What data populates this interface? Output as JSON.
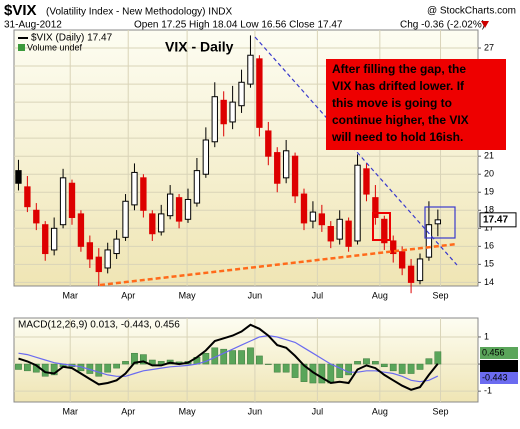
{
  "header": {
    "symbol": "$VIX",
    "name": "(Volatility Index - New Methodology) INDX",
    "date": "31-Aug-2012",
    "quote": "Open 17.25 High 18.04 Low 16.56 Close 17.47",
    "change": "Chg -0.36 (-2.02%)",
    "source": "@ StockCharts.com"
  },
  "chart_data": [
    {
      "type": "candlestick",
      "title": "VIX - Daily",
      "legend": [
        "$VIX (Daily) 17.47",
        "Volume undef"
      ],
      "annotation": [
        "After filling the gap, the",
        "VIX has drifted lower. If",
        "this move is going to",
        "continue higher, the VIX",
        "will need to hold 16ish."
      ],
      "open": [
        20.2,
        19.3,
        18.0,
        17.2,
        15.8,
        17.2,
        19.5,
        17.8,
        16.2,
        15.4,
        14.8,
        15.6,
        16.5,
        18.3,
        19.8,
        17.8,
        16.8,
        17.7,
        18.7,
        17.5,
        18.4,
        20.0,
        21.8,
        24.1,
        22.9,
        23.8,
        25.0,
        26.4,
        22.4,
        21.2,
        19.8,
        21.0,
        18.9,
        17.4,
        17.8,
        17.1,
        16.4,
        17.4,
        16.3,
        20.3,
        18.7,
        17.5,
        16.3,
        15.7,
        14.9,
        14.1,
        15.4,
        17.25
      ],
      "high": [
        20.8,
        19.9,
        18.4,
        17.4,
        17.6,
        20.3,
        19.7,
        18.0,
        16.6,
        15.9,
        16.2,
        16.9,
        18.9,
        20.6,
        20.0,
        18.0,
        18.3,
        19.4,
        18.9,
        19.2,
        20.9,
        22.6,
        25.1,
        24.6,
        24.9,
        25.8,
        27.7,
        26.6,
        22.9,
        21.5,
        21.9,
        21.2,
        19.2,
        18.5,
        18.3,
        17.4,
        18.0,
        17.6,
        21.1,
        20.6,
        19.4,
        17.7,
        16.6,
        16.0,
        15.3,
        15.6,
        18.5,
        18.04
      ],
      "low": [
        19.1,
        17.9,
        16.9,
        15.2,
        15.5,
        17.0,
        17.2,
        15.7,
        14.8,
        13.8,
        14.5,
        15.3,
        16.3,
        18.0,
        17.6,
        16.3,
        16.6,
        17.5,
        17.0,
        17.3,
        18.2,
        19.8,
        21.5,
        22.1,
        22.5,
        23.4,
        24.8,
        22.1,
        20.5,
        19.0,
        19.5,
        18.4,
        16.9,
        17.0,
        16.8,
        15.9,
        16.1,
        15.7,
        16.1,
        18.5,
        17.2,
        15.8,
        15.1,
        14.4,
        13.4,
        13.9,
        15.2,
        16.56
      ],
      "close": [
        19.5,
        18.2,
        17.3,
        15.6,
        17.0,
        19.8,
        17.6,
        16.0,
        15.3,
        14.6,
        15.8,
        16.4,
        18.5,
        20.1,
        18.0,
        16.7,
        17.8,
        18.9,
        17.4,
        18.6,
        20.2,
        21.9,
        24.3,
        22.8,
        24.0,
        25.1,
        26.6,
        22.6,
        21.0,
        19.5,
        21.3,
        18.8,
        17.3,
        17.9,
        17.2,
        16.3,
        17.5,
        16.0,
        20.5,
        18.9,
        17.6,
        16.2,
        15.6,
        14.8,
        14.0,
        15.3,
        17.2,
        17.47
      ],
      "xlim": [
        0,
        52
      ],
      "xticks": [
        {
          "value": 6.3,
          "label": "Mar"
        },
        {
          "value": 12.8,
          "label": "Apr"
        },
        {
          "value": 19.4,
          "label": "May"
        },
        {
          "value": 27.0,
          "label": "Jun"
        },
        {
          "value": 34.0,
          "label": "Jul"
        },
        {
          "value": 41.0,
          "label": "Aug"
        },
        {
          "value": 47.8,
          "label": "Sep"
        }
      ],
      "ylim": [
        13.8,
        28
      ],
      "yticks": [
        14,
        15,
        16,
        17,
        18,
        19,
        20,
        21,
        22,
        23,
        24,
        25,
        26,
        27
      ],
      "grid": true
    },
    {
      "type": "macd",
      "legend": "MACD(12,26,9) 0.013, -0.443, 0.456",
      "series": [
        {
          "color": "#5aa55a",
          "values": [
            -0.2,
            -0.25,
            -0.3,
            -0.45,
            -0.4,
            -0.1,
            -0.1,
            -0.25,
            -0.35,
            -0.45,
            -0.3,
            -0.15,
            0.1,
            0.4,
            0.35,
            0.15,
            0.1,
            0.15,
            0.08,
            0.1,
            0.25,
            0.4,
            0.6,
            0.55,
            0.5,
            0.5,
            0.6,
            0.3,
            0.0,
            -0.3,
            -0.3,
            -0.5,
            -0.65,
            -0.7,
            -0.7,
            -0.7,
            -0.5,
            -0.4,
            0.1,
            0.2,
            0.1,
            -0.1,
            -0.25,
            -0.35,
            -0.35,
            -0.2,
            0.2,
            0.456
          ]
        },
        {
          "color": "#000000",
          "values": [
            0.2,
            0.1,
            -0.05,
            -0.3,
            -0.35,
            -0.1,
            -0.15,
            -0.35,
            -0.55,
            -0.75,
            -0.7,
            -0.6,
            -0.35,
            0.05,
            0.1,
            -0.05,
            -0.05,
            0.05,
            0.0,
            0.05,
            0.25,
            0.5,
            0.85,
            0.95,
            1.05,
            1.2,
            1.45,
            1.3,
            1.05,
            0.7,
            0.6,
            0.3,
            -0.05,
            -0.3,
            -0.5,
            -0.7,
            -0.65,
            -0.7,
            -0.2,
            -0.05,
            -0.15,
            -0.4,
            -0.6,
            -0.8,
            -0.95,
            -0.85,
            -0.4,
            0.013
          ]
        },
        {
          "color": "#6b6bf0",
          "values": [
            0.4,
            0.35,
            0.25,
            0.15,
            0.05,
            0.0,
            -0.05,
            -0.1,
            -0.2,
            -0.3,
            -0.4,
            -0.45,
            -0.45,
            -0.35,
            -0.25,
            -0.2,
            -0.15,
            -0.1,
            -0.08,
            -0.05,
            0.0,
            0.1,
            0.25,
            0.4,
            0.55,
            0.7,
            0.85,
            1.0,
            1.05,
            1.0,
            0.9,
            0.8,
            0.6,
            0.4,
            0.2,
            0.0,
            -0.15,
            -0.3,
            -0.3,
            -0.25,
            -0.25,
            -0.3,
            -0.35,
            -0.45,
            -0.6,
            -0.65,
            -0.6,
            -0.443
          ]
        }
      ],
      "xlim": [
        0,
        52
      ],
      "xticks": [
        {
          "value": 6.3,
          "label": "Mar"
        },
        {
          "value": 12.8,
          "label": "Apr"
        },
        {
          "value": 19.4,
          "label": "May"
        },
        {
          "value": 27.0,
          "label": "Jun"
        },
        {
          "value": 34.0,
          "label": "Jul"
        },
        {
          "value": 41.0,
          "label": "Aug"
        },
        {
          "value": 47.8,
          "label": "Sep"
        }
      ],
      "ylim": [
        -1.4,
        1.7
      ],
      "yticks": [
        1,
        0,
        -1
      ],
      "grid": true
    }
  ]
}
